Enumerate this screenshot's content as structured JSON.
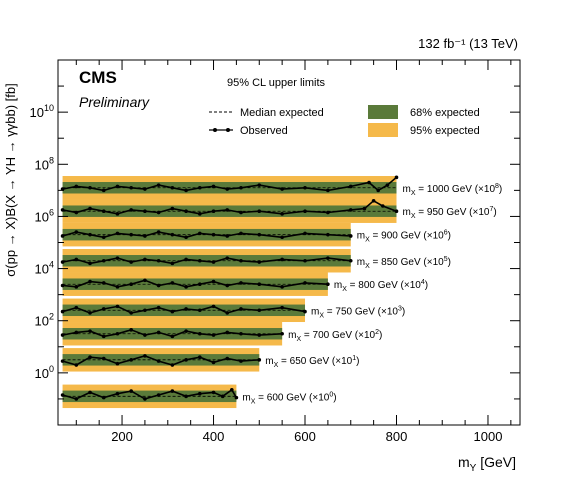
{
  "chart_data": {
    "type": "line",
    "lumi_label": "132 fb⁻¹ (13 TeV)",
    "experiment": "CMS",
    "experiment_sub": "Preliminary",
    "title": "95% CL upper limits",
    "xlabel": "m_Y [GeV]",
    "ylabel": "σ(pp → X)B(X → YH → γγbb) [fb]",
    "xlim": [
      60,
      1070
    ],
    "ylim_log10": [
      -2,
      12
    ],
    "log_y": true,
    "x_ticks": [
      200,
      400,
      600,
      800,
      1000
    ],
    "y_tick_labels": [
      {
        "value": 1,
        "base": "10",
        "exp": "0"
      },
      {
        "value": 100,
        "base": "10",
        "exp": "2"
      },
      {
        "value": 10000,
        "base": "10",
        "exp": "4"
      },
      {
        "value": 1000000,
        "base": "10",
        "exp": "6"
      },
      {
        "value": 100000000,
        "base": "10",
        "exp": "8"
      },
      {
        "value": 10000000000,
        "base": "10",
        "exp": "10"
      }
    ],
    "legend": {
      "placement": "top",
      "entries": [
        {
          "label": "Median expected",
          "style": "dashed-line"
        },
        {
          "label": "Observed",
          "style": "line-with-markers"
        },
        {
          "label": "68% expected",
          "style": "band",
          "color": "#5a7a3a"
        },
        {
          "label": "95% expected",
          "style": "band",
          "color": "#f5b94a"
        }
      ]
    },
    "colors": {
      "band68": "#5a7a3a",
      "band95": "#f5b94a",
      "observed": "#000000"
    },
    "series": [
      {
        "label": "m_X = 600 GeV (×10⁰)",
        "lbl_pre": "m",
        "lbl_sub": "X",
        "lbl_mid": " = 600 GeV (×10",
        "lbl_exp": "0",
        "lbl_post": ")",
        "x_range": [
          70,
          450
        ],
        "median_log10": -0.9,
        "observed_points": [
          [
            70,
            -0.85
          ],
          [
            100,
            -1.0
          ],
          [
            130,
            -0.75
          ],
          [
            160,
            -0.95
          ],
          [
            190,
            -0.8
          ],
          [
            220,
            -0.7
          ],
          [
            250,
            -1.0
          ],
          [
            280,
            -0.85
          ],
          [
            310,
            -0.7
          ],
          [
            340,
            -0.9
          ],
          [
            370,
            -0.8
          ],
          [
            400,
            -0.75
          ],
          [
            420,
            -0.9
          ],
          [
            440,
            -0.65
          ],
          [
            450,
            -0.95
          ]
        ]
      },
      {
        "label": "m_X = 650 GeV (×10¹)",
        "lbl_pre": "m",
        "lbl_sub": "X",
        "lbl_mid": " = 650 GeV (×10",
        "lbl_exp": "1",
        "lbl_post": ")",
        "x_range": [
          70,
          500
        ],
        "median_log10": 0.5,
        "observed_points": [
          [
            70,
            0.45
          ],
          [
            100,
            0.3
          ],
          [
            130,
            0.6
          ],
          [
            160,
            0.55
          ],
          [
            190,
            0.35
          ],
          [
            220,
            0.5
          ],
          [
            250,
            0.65
          ],
          [
            280,
            0.45
          ],
          [
            310,
            0.3
          ],
          [
            340,
            0.5
          ],
          [
            370,
            0.6
          ],
          [
            400,
            0.4
          ],
          [
            430,
            0.55
          ],
          [
            460,
            0.45
          ],
          [
            500,
            0.5
          ]
        ]
      },
      {
        "label": "m_X = 700 GeV (×10²)",
        "lbl_pre": "m",
        "lbl_sub": "X",
        "lbl_mid": " = 700 GeV (×10",
        "lbl_exp": "2",
        "lbl_post": ")",
        "x_range": [
          70,
          550
        ],
        "median_log10": 1.5,
        "observed_points": [
          [
            70,
            1.45
          ],
          [
            100,
            1.55
          ],
          [
            130,
            1.6
          ],
          [
            160,
            1.4
          ],
          [
            190,
            1.5
          ],
          [
            220,
            1.65
          ],
          [
            250,
            1.45
          ],
          [
            280,
            1.55
          ],
          [
            310,
            1.4
          ],
          [
            340,
            1.6
          ],
          [
            370,
            1.5
          ],
          [
            400,
            1.45
          ],
          [
            430,
            1.55
          ],
          [
            460,
            1.5
          ],
          [
            500,
            1.45
          ],
          [
            550,
            1.5
          ]
        ]
      },
      {
        "label": "m_X = 750 GeV (×10³)",
        "lbl_pre": "m",
        "lbl_sub": "X",
        "lbl_mid": " = 750 GeV (×10",
        "lbl_exp": "3",
        "lbl_post": ")",
        "x_range": [
          70,
          600
        ],
        "median_log10": 2.4,
        "observed_points": [
          [
            70,
            2.35
          ],
          [
            100,
            2.5
          ],
          [
            130,
            2.3
          ],
          [
            160,
            2.45
          ],
          [
            190,
            2.55
          ],
          [
            220,
            2.3
          ],
          [
            250,
            2.4
          ],
          [
            280,
            2.5
          ],
          [
            310,
            2.35
          ],
          [
            340,
            2.45
          ],
          [
            370,
            2.4
          ],
          [
            400,
            2.55
          ],
          [
            430,
            2.3
          ],
          [
            460,
            2.45
          ],
          [
            500,
            2.4
          ],
          [
            550,
            2.5
          ],
          [
            600,
            2.35
          ]
        ]
      },
      {
        "label": "m_X = 800 GeV (×10⁴)",
        "lbl_pre": "m",
        "lbl_sub": "X",
        "lbl_mid": " = 800 GeV (×10",
        "lbl_exp": "4",
        "lbl_post": ")",
        "x_range": [
          70,
          650
        ],
        "median_log10": 3.4,
        "observed_points": [
          [
            70,
            3.35
          ],
          [
            100,
            3.3
          ],
          [
            130,
            3.5
          ],
          [
            160,
            3.45
          ],
          [
            190,
            3.3
          ],
          [
            220,
            3.4
          ],
          [
            250,
            3.55
          ],
          [
            280,
            3.35
          ],
          [
            310,
            3.45
          ],
          [
            340,
            3.3
          ],
          [
            370,
            3.4
          ],
          [
            400,
            3.5
          ],
          [
            430,
            3.35
          ],
          [
            460,
            3.45
          ],
          [
            500,
            3.4
          ],
          [
            550,
            3.3
          ],
          [
            600,
            3.45
          ],
          [
            650,
            3.4
          ]
        ]
      },
      {
        "label": "m_X = 850 GeV (×10⁵)",
        "lbl_pre": "m",
        "lbl_sub": "X",
        "lbl_mid": " = 850 GeV (×10",
        "lbl_exp": "5",
        "lbl_post": ")",
        "x_range": [
          70,
          700
        ],
        "median_log10": 4.3,
        "observed_points": [
          [
            70,
            4.25
          ],
          [
            100,
            4.35
          ],
          [
            130,
            4.2
          ],
          [
            160,
            4.3
          ],
          [
            190,
            4.4
          ],
          [
            220,
            4.25
          ],
          [
            250,
            4.35
          ],
          [
            280,
            4.3
          ],
          [
            310,
            4.2
          ],
          [
            340,
            4.35
          ],
          [
            370,
            4.3
          ],
          [
            400,
            4.25
          ],
          [
            430,
            4.4
          ],
          [
            460,
            4.3
          ],
          [
            500,
            4.25
          ],
          [
            550,
            4.35
          ],
          [
            600,
            4.3
          ],
          [
            650,
            4.4
          ],
          [
            700,
            4.3
          ]
        ]
      },
      {
        "label": "m_X = 900 GeV (×10⁶)",
        "lbl_pre": "m",
        "lbl_sub": "X",
        "lbl_mid": " = 900 GeV (×10",
        "lbl_exp": "6",
        "lbl_post": ")",
        "x_range": [
          70,
          700
        ],
        "median_log10": 5.3,
        "observed_points": [
          [
            70,
            5.25
          ],
          [
            100,
            5.4
          ],
          [
            130,
            5.3
          ],
          [
            160,
            5.2
          ],
          [
            190,
            5.35
          ],
          [
            220,
            5.3
          ],
          [
            250,
            5.25
          ],
          [
            280,
            5.4
          ],
          [
            310,
            5.3
          ],
          [
            340,
            5.2
          ],
          [
            370,
            5.35
          ],
          [
            400,
            5.3
          ],
          [
            430,
            5.25
          ],
          [
            460,
            5.35
          ],
          [
            500,
            5.3
          ],
          [
            550,
            5.2
          ],
          [
            600,
            5.35
          ],
          [
            650,
            5.3
          ],
          [
            700,
            5.25
          ]
        ]
      },
      {
        "label": "m_X = 950 GeV (×10⁷)",
        "lbl_pre": "m",
        "lbl_sub": "X",
        "lbl_mid": " = 950 GeV (×10",
        "lbl_exp": "7",
        "lbl_post": ")",
        "x_range": [
          70,
          800
        ],
        "median_log10": 6.2,
        "observed_points": [
          [
            70,
            6.25
          ],
          [
            100,
            6.15
          ],
          [
            130,
            6.3
          ],
          [
            160,
            6.2
          ],
          [
            190,
            6.1
          ],
          [
            220,
            6.25
          ],
          [
            250,
            6.2
          ],
          [
            280,
            6.15
          ],
          [
            310,
            6.3
          ],
          [
            340,
            6.2
          ],
          [
            370,
            6.1
          ],
          [
            400,
            6.2
          ],
          [
            430,
            6.25
          ],
          [
            460,
            6.15
          ],
          [
            500,
            6.2
          ],
          [
            550,
            6.1
          ],
          [
            600,
            6.2
          ],
          [
            650,
            6.15
          ],
          [
            700,
            6.25
          ],
          [
            730,
            6.3
          ],
          [
            750,
            6.6
          ],
          [
            770,
            6.4
          ],
          [
            800,
            6.2
          ]
        ]
      },
      {
        "label": "m_X = 1000 GeV (×10⁸)",
        "lbl_pre": "m",
        "lbl_sub": "X",
        "lbl_mid": " = 1000 GeV (×10",
        "lbl_exp": "8",
        "lbl_post": ")",
        "x_range": [
          70,
          800
        ],
        "median_log10": 7.1,
        "observed_points": [
          [
            70,
            7.05
          ],
          [
            100,
            7.15
          ],
          [
            130,
            7.1
          ],
          [
            160,
            7.0
          ],
          [
            190,
            7.15
          ],
          [
            220,
            7.1
          ],
          [
            250,
            7.05
          ],
          [
            280,
            7.2
          ],
          [
            310,
            7.1
          ],
          [
            340,
            7.0
          ],
          [
            370,
            7.1
          ],
          [
            400,
            7.15
          ],
          [
            430,
            7.05
          ],
          [
            460,
            7.1
          ],
          [
            500,
            7.2
          ],
          [
            550,
            7.05
          ],
          [
            600,
            7.1
          ],
          [
            650,
            7.0
          ],
          [
            700,
            7.15
          ],
          [
            740,
            7.3
          ],
          [
            760,
            7.0
          ],
          [
            780,
            7.2
          ],
          [
            800,
            7.5
          ]
        ]
      }
    ]
  }
}
